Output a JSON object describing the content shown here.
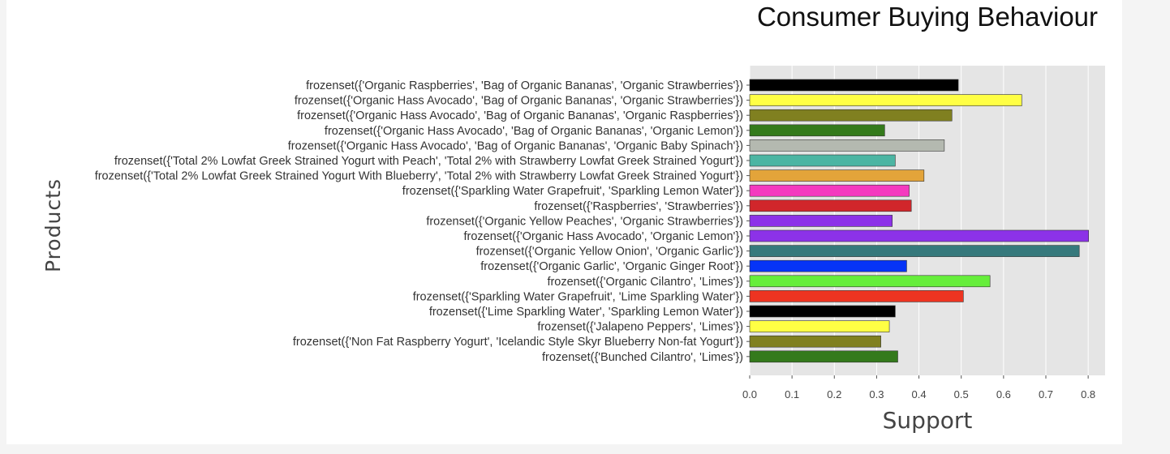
{
  "chart_data": {
    "type": "bar",
    "orientation": "horizontal",
    "title": "Consumer Buying Behaviour",
    "xlabel": "Support",
    "ylabel": "Products",
    "xlim": [
      0,
      0.84
    ],
    "xticks": [
      "0.0",
      "0.1",
      "0.2",
      "0.3",
      "0.4",
      "0.5",
      "0.6",
      "0.7",
      "0.8"
    ],
    "grid": true,
    "categories": [
      "frozenset({'Organic Raspberries', 'Bag of Organic Bananas', 'Organic Strawberries'})",
      "frozenset({'Organic Hass Avocado', 'Bag of Organic Bananas', 'Organic Strawberries'})",
      "frozenset({'Organic Hass Avocado', 'Bag of Organic Bananas', 'Organic Raspberries'})",
      "frozenset({'Organic Hass Avocado', 'Bag of Organic Bananas', 'Organic Lemon'})",
      "frozenset({'Organic Hass Avocado', 'Bag of Organic Bananas', 'Organic Baby Spinach'})",
      "frozenset({'Total 2% Lowfat Greek Strained Yogurt with Peach', 'Total 2% with Strawberry Lowfat Greek Strained Yogurt'})",
      "frozenset({'Total 2% Lowfat Greek Strained Yogurt With Blueberry', 'Total 2% with Strawberry Lowfat Greek Strained Yogurt'})",
      "frozenset({'Sparkling Water Grapefruit', 'Sparkling Lemon Water'})",
      "frozenset({'Raspberries', 'Strawberries'})",
      "frozenset({'Organic Yellow Peaches', 'Organic Strawberries'})",
      "frozenset({'Organic Hass Avocado', 'Organic Lemon'})",
      "frozenset({'Organic Yellow Onion', 'Organic Garlic'})",
      "frozenset({'Organic Garlic', 'Organic Ginger Root'})",
      "frozenset({'Organic Cilantro', 'Limes'})",
      "frozenset({'Sparkling Water Grapefruit', 'Lime Sparkling Water'})",
      "frozenset({'Lime Sparkling Water', 'Sparkling Lemon Water'})",
      "frozenset({'Jalapeno Peppers', 'Limes'})",
      "frozenset({'Non Fat Raspberry Yogurt', 'Icelandic Style Skyr Blueberry Non-fat Yogurt'})",
      "frozenset({'Bunched Cilantro', 'Limes'})"
    ],
    "values": [
      0.493,
      0.643,
      0.478,
      0.319,
      0.46,
      0.344,
      0.412,
      0.377,
      0.382,
      0.337,
      0.801,
      0.779,
      0.371,
      0.568,
      0.505,
      0.344,
      0.33,
      0.31,
      0.35
    ],
    "colors": [
      "#000000",
      "#ffff44",
      "#808020",
      "#347a1c",
      "#b4b9b0",
      "#4cb5a3",
      "#e3a43a",
      "#f43abf",
      "#d1262b",
      "#8c32e8",
      "#8c32e8",
      "#36797c",
      "#0634f7",
      "#66ee3b",
      "#ed3421",
      "#000000",
      "#ffff44",
      "#808020",
      "#347a1c"
    ]
  }
}
